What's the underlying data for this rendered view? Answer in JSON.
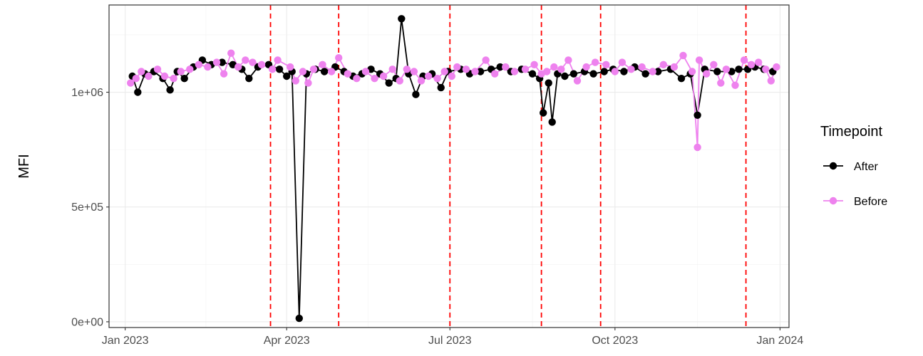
{
  "chart_data": {
    "type": "line",
    "ylabel": "MFI",
    "xlabel": "",
    "xlim": [
      "2022-12-23",
      "2024-01-06"
    ],
    "ylim": [
      -25000,
      1380000
    ],
    "x_ticks": [
      {
        "date": "2023-01-01",
        "label": "Jan 2023"
      },
      {
        "date": "2023-04-01",
        "label": "Apr 2023"
      },
      {
        "date": "2023-07-01",
        "label": "Jul 2023"
      },
      {
        "date": "2023-10-01",
        "label": "Oct 2023"
      },
      {
        "date": "2024-01-01",
        "label": "Jan 2024"
      }
    ],
    "y_ticks": [
      {
        "value": 0,
        "label": "0e+00"
      },
      {
        "value": 500000,
        "label": "5e+05"
      },
      {
        "value": 1000000,
        "label": "1e+06"
      }
    ],
    "grid": true,
    "legend": {
      "title": "Timepoint",
      "placement": "right"
    },
    "vlines": {
      "color": "#ff0000",
      "style": "dashed",
      "dates": [
        "2023-03-23",
        "2023-04-30",
        "2023-07-01",
        "2023-08-21",
        "2023-09-23",
        "2023-12-13"
      ]
    },
    "series": [
      {
        "name": "After",
        "color": "#000000",
        "points": [
          [
            "2023-01-05",
            1070000
          ],
          [
            "2023-01-08",
            1000000
          ],
          [
            "2023-01-12",
            1080000
          ],
          [
            "2023-01-17",
            1090000
          ],
          [
            "2023-01-22",
            1060000
          ],
          [
            "2023-01-26",
            1010000
          ],
          [
            "2023-01-30",
            1090000
          ],
          [
            "2023-02-03",
            1060000
          ],
          [
            "2023-02-08",
            1110000
          ],
          [
            "2023-02-13",
            1140000
          ],
          [
            "2023-02-18",
            1120000
          ],
          [
            "2023-02-24",
            1130000
          ],
          [
            "2023-03-02",
            1120000
          ],
          [
            "2023-03-07",
            1100000
          ],
          [
            "2023-03-11",
            1060000
          ],
          [
            "2023-03-16",
            1110000
          ],
          [
            "2023-03-22",
            1120000
          ],
          [
            "2023-03-28",
            1100000
          ],
          [
            "2023-04-01",
            1070000
          ],
          [
            "2023-04-04",
            1090000
          ],
          [
            "2023-04-08",
            15000
          ],
          [
            "2023-04-12",
            1080000
          ],
          [
            "2023-04-17",
            1100000
          ],
          [
            "2023-04-22",
            1090000
          ],
          [
            "2023-04-28",
            1110000
          ],
          [
            "2023-05-03",
            1090000
          ],
          [
            "2023-05-08",
            1070000
          ],
          [
            "2023-05-13",
            1080000
          ],
          [
            "2023-05-18",
            1100000
          ],
          [
            "2023-05-23",
            1080000
          ],
          [
            "2023-05-28",
            1040000
          ],
          [
            "2023-06-01",
            1060000
          ],
          [
            "2023-06-04",
            1320000
          ],
          [
            "2023-06-08",
            1080000
          ],
          [
            "2023-06-12",
            990000
          ],
          [
            "2023-06-16",
            1070000
          ],
          [
            "2023-06-21",
            1080000
          ],
          [
            "2023-06-26",
            1020000
          ],
          [
            "2023-06-30",
            1090000
          ],
          [
            "2023-07-07",
            1100000
          ],
          [
            "2023-07-12",
            1080000
          ],
          [
            "2023-07-18",
            1090000
          ],
          [
            "2023-07-24",
            1100000
          ],
          [
            "2023-07-29",
            1110000
          ],
          [
            "2023-08-04",
            1090000
          ],
          [
            "2023-08-10",
            1100000
          ],
          [
            "2023-08-16",
            1080000
          ],
          [
            "2023-08-20",
            1060000
          ],
          [
            "2023-08-22",
            910000
          ],
          [
            "2023-08-25",
            1040000
          ],
          [
            "2023-08-27",
            870000
          ],
          [
            "2023-08-30",
            1080000
          ],
          [
            "2023-09-03",
            1070000
          ],
          [
            "2023-09-08",
            1080000
          ],
          [
            "2023-09-14",
            1090000
          ],
          [
            "2023-09-19",
            1080000
          ],
          [
            "2023-09-25",
            1090000
          ],
          [
            "2023-09-30",
            1100000
          ],
          [
            "2023-10-06",
            1090000
          ],
          [
            "2023-10-12",
            1110000
          ],
          [
            "2023-10-18",
            1080000
          ],
          [
            "2023-10-25",
            1090000
          ],
          [
            "2023-11-01",
            1100000
          ],
          [
            "2023-11-07",
            1060000
          ],
          [
            "2023-11-12",
            1080000
          ],
          [
            "2023-11-16",
            900000
          ],
          [
            "2023-11-20",
            1100000
          ],
          [
            "2023-11-27",
            1090000
          ],
          [
            "2023-12-05",
            1090000
          ],
          [
            "2023-12-09",
            1100000
          ],
          [
            "2023-12-14",
            1100000
          ],
          [
            "2023-12-18",
            1110000
          ],
          [
            "2023-12-23",
            1100000
          ],
          [
            "2023-12-28",
            1090000
          ]
        ]
      },
      {
        "name": "Before",
        "color": "#ee82ee",
        "points": [
          [
            "2023-01-04",
            1040000
          ],
          [
            "2023-01-07",
            1060000
          ],
          [
            "2023-01-10",
            1090000
          ],
          [
            "2023-01-14",
            1070000
          ],
          [
            "2023-01-19",
            1100000
          ],
          [
            "2023-01-23",
            1070000
          ],
          [
            "2023-01-28",
            1060000
          ],
          [
            "2023-02-01",
            1090000
          ],
          [
            "2023-02-06",
            1100000
          ],
          [
            "2023-02-11",
            1120000
          ],
          [
            "2023-02-16",
            1110000
          ],
          [
            "2023-02-21",
            1130000
          ],
          [
            "2023-02-25",
            1080000
          ],
          [
            "2023-03-01",
            1170000
          ],
          [
            "2023-03-05",
            1110000
          ],
          [
            "2023-03-09",
            1140000
          ],
          [
            "2023-03-13",
            1130000
          ],
          [
            "2023-03-18",
            1120000
          ],
          [
            "2023-03-24",
            1100000
          ],
          [
            "2023-03-27",
            1140000
          ],
          [
            "2023-04-03",
            1110000
          ],
          [
            "2023-04-06",
            1050000
          ],
          [
            "2023-04-10",
            1090000
          ],
          [
            "2023-04-13",
            1040000
          ],
          [
            "2023-04-16",
            1100000
          ],
          [
            "2023-04-21",
            1120000
          ],
          [
            "2023-04-26",
            1090000
          ],
          [
            "2023-04-30",
            1150000
          ],
          [
            "2023-05-05",
            1080000
          ],
          [
            "2023-05-10",
            1060000
          ],
          [
            "2023-05-15",
            1090000
          ],
          [
            "2023-05-20",
            1060000
          ],
          [
            "2023-05-25",
            1070000
          ],
          [
            "2023-05-30",
            1100000
          ],
          [
            "2023-06-03",
            1050000
          ],
          [
            "2023-06-07",
            1100000
          ],
          [
            "2023-06-11",
            1090000
          ],
          [
            "2023-06-15",
            1050000
          ],
          [
            "2023-06-19",
            1070000
          ],
          [
            "2023-06-24",
            1060000
          ],
          [
            "2023-06-28",
            1090000
          ],
          [
            "2023-07-02",
            1070000
          ],
          [
            "2023-07-05",
            1110000
          ],
          [
            "2023-07-10",
            1100000
          ],
          [
            "2023-07-15",
            1090000
          ],
          [
            "2023-07-21",
            1140000
          ],
          [
            "2023-07-26",
            1080000
          ],
          [
            "2023-08-01",
            1110000
          ],
          [
            "2023-08-06",
            1090000
          ],
          [
            "2023-08-12",
            1100000
          ],
          [
            "2023-08-17",
            1120000
          ],
          [
            "2023-08-21",
            1080000
          ],
          [
            "2023-08-24",
            1090000
          ],
          [
            "2023-08-28",
            1110000
          ],
          [
            "2023-09-01",
            1100000
          ],
          [
            "2023-09-05",
            1140000
          ],
          [
            "2023-09-10",
            1050000
          ],
          [
            "2023-09-15",
            1110000
          ],
          [
            "2023-09-20",
            1130000
          ],
          [
            "2023-09-26",
            1120000
          ],
          [
            "2023-10-01",
            1090000
          ],
          [
            "2023-10-05",
            1130000
          ],
          [
            "2023-10-10",
            1100000
          ],
          [
            "2023-10-16",
            1110000
          ],
          [
            "2023-10-22",
            1090000
          ],
          [
            "2023-10-28",
            1120000
          ],
          [
            "2023-11-03",
            1110000
          ],
          [
            "2023-11-08",
            1160000
          ],
          [
            "2023-11-13",
            1090000
          ],
          [
            "2023-11-16",
            760000
          ],
          [
            "2023-11-17",
            1140000
          ],
          [
            "2023-11-21",
            1080000
          ],
          [
            "2023-11-25",
            1120000
          ],
          [
            "2023-11-29",
            1040000
          ],
          [
            "2023-12-02",
            1100000
          ],
          [
            "2023-12-07",
            1030000
          ],
          [
            "2023-12-12",
            1140000
          ],
          [
            "2023-12-16",
            1120000
          ],
          [
            "2023-12-20",
            1130000
          ],
          [
            "2023-12-24",
            1100000
          ],
          [
            "2023-12-27",
            1050000
          ],
          [
            "2023-12-30",
            1110000
          ]
        ]
      }
    ]
  }
}
